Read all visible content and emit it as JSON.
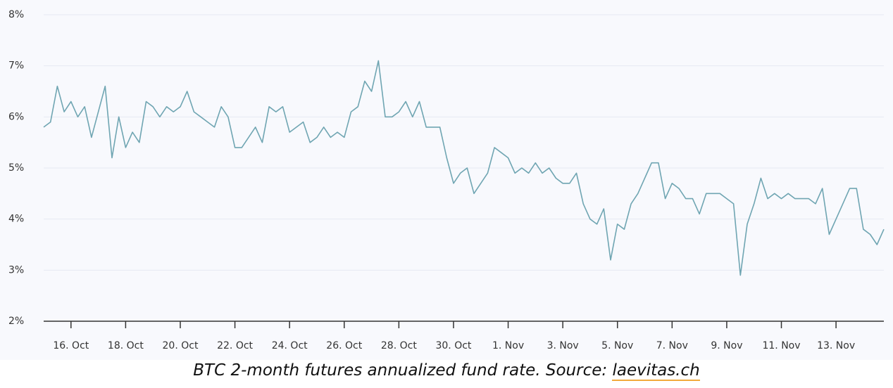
{
  "chart_data": {
    "type": "line",
    "categories": [
      null,
      null,
      null,
      null,
      "16. Oct",
      null,
      null,
      null,
      null,
      null,
      null,
      null,
      "18. Oct",
      null,
      null,
      null,
      null,
      null,
      null,
      null,
      "20. Oct",
      null,
      null,
      null,
      null,
      null,
      null,
      null,
      "22. Oct",
      null,
      null,
      null,
      null,
      null,
      null,
      null,
      "24. Oct",
      null,
      null,
      null,
      null,
      null,
      null,
      null,
      "26. Oct",
      null,
      null,
      null,
      null,
      null,
      null,
      null,
      "28. Oct",
      null,
      null,
      null,
      null,
      null,
      null,
      null,
      "30. Oct",
      null,
      null,
      null,
      null,
      null,
      null,
      null,
      "1. Nov",
      null,
      null,
      null,
      null,
      null,
      null,
      null,
      "3. Nov",
      null,
      null,
      null,
      null,
      null,
      null,
      null,
      "5. Nov",
      null,
      null,
      null,
      null,
      null,
      null,
      null,
      "7. Nov",
      null,
      null,
      null,
      null,
      null,
      null,
      null,
      "9. Nov",
      null,
      null,
      null,
      null,
      null,
      null,
      null,
      "11. Nov",
      null,
      null,
      null,
      null,
      null,
      null,
      null,
      "13. Nov",
      null,
      null,
      null,
      null,
      null,
      null,
      null
    ],
    "series": [
      {
        "name": "BTC 2-month futures annualized fund rate",
        "color": "#6fa5b2",
        "values": [
          5.8,
          5.9,
          6.6,
          6.1,
          6.3,
          6.0,
          6.2,
          5.6,
          6.1,
          6.6,
          5.2,
          6.0,
          5.4,
          5.7,
          5.5,
          6.3,
          6.2,
          6.0,
          6.2,
          6.1,
          6.2,
          6.5,
          6.1,
          6.0,
          5.9,
          5.8,
          6.2,
          6.0,
          5.4,
          5.4,
          5.6,
          5.8,
          5.5,
          6.2,
          6.1,
          6.2,
          5.7,
          5.8,
          5.9,
          5.5,
          5.6,
          5.8,
          5.6,
          5.7,
          5.6,
          6.1,
          6.2,
          6.7,
          6.5,
          7.1,
          6.0,
          6.0,
          6.1,
          6.3,
          6.0,
          6.3,
          5.8,
          5.8,
          5.8,
          5.2,
          4.7,
          4.9,
          5.0,
          4.5,
          4.7,
          4.9,
          5.4,
          5.3,
          5.2,
          4.9,
          5.0,
          4.9,
          5.1,
          4.9,
          5.0,
          4.8,
          4.7,
          4.7,
          4.9,
          4.3,
          4.0,
          3.9,
          4.2,
          3.2,
          3.9,
          3.8,
          4.3,
          4.5,
          4.8,
          5.1,
          5.1,
          4.4,
          4.7,
          4.6,
          4.4,
          4.4,
          4.1,
          4.5,
          4.5,
          4.5,
          4.4,
          4.3,
          2.9,
          3.9,
          4.3,
          4.8,
          4.4,
          4.5,
          4.4,
          4.5,
          4.4,
          4.4,
          4.4,
          4.3,
          4.6,
          3.7,
          4.0,
          4.3,
          4.6,
          4.6,
          3.8,
          3.7,
          3.5,
          3.8
        ]
      }
    ],
    "ylim": [
      2,
      8
    ],
    "yticks": [
      {
        "value": 2,
        "label": "2%"
      },
      {
        "value": 3,
        "label": "3%"
      },
      {
        "value": 4,
        "label": "4%"
      },
      {
        "value": 5,
        "label": "5%"
      },
      {
        "value": 6,
        "label": "6%"
      },
      {
        "value": 7,
        "label": "7%"
      },
      {
        "value": 8,
        "label": "8%"
      }
    ],
    "grid": true
  },
  "caption": {
    "text": "BTC 2-month futures annualized fund rate. Source: ",
    "link": "laevitas.ch"
  }
}
